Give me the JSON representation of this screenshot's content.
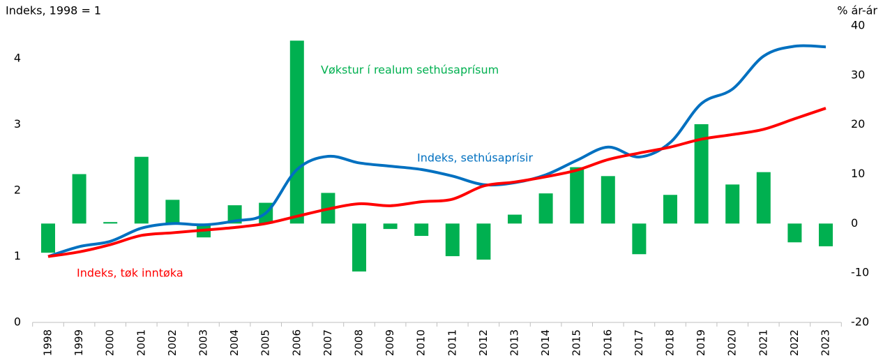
{
  "chart_data": {
    "type": "bar_line",
    "y_label": "Indeks, 1998 = 1",
    "y2_label": "% ár-ár",
    "categories": [
      "1998",
      "1999",
      "2000",
      "2001",
      "2002",
      "2003",
      "2004",
      "2005",
      "2006",
      "2007",
      "2008",
      "2009",
      "2010",
      "2011",
      "2012",
      "2013",
      "2014",
      "2015",
      "2016",
      "2017",
      "2018",
      "2019",
      "2020",
      "2021",
      "2022",
      "2023"
    ],
    "ylim": [
      0,
      4.5
    ],
    "yticks": [
      0,
      1,
      2,
      3,
      4
    ],
    "y2lim": [
      -20,
      40
    ],
    "y2ticks": [
      -20,
      -10,
      0,
      10,
      20,
      30,
      40
    ],
    "series": [
      {
        "name": "Vøkstur í realum sethúsaprísum",
        "type": "bar",
        "axis": "y2",
        "color": "#00b050",
        "values": [
          -5.9,
          10,
          0.3,
          13.5,
          4.8,
          -2.8,
          3.7,
          4.2,
          37,
          6.2,
          -9.7,
          -1.1,
          -2.5,
          -6.6,
          -7.3,
          1.8,
          6.1,
          11.4,
          9.6,
          -6.2,
          5.8,
          20.1,
          7.9,
          10.4,
          -3.8,
          -4.6
        ]
      },
      {
        "name": "Indeks, sethúsaprísir",
        "type": "line",
        "axis": "y",
        "color": "#0070c0",
        "values": [
          1.0,
          1.15,
          1.23,
          1.43,
          1.5,
          1.48,
          1.54,
          1.66,
          2.32,
          2.52,
          2.42,
          2.37,
          2.32,
          2.22,
          2.09,
          2.12,
          2.24,
          2.46,
          2.66,
          2.51,
          2.73,
          3.32,
          3.54,
          4.04,
          4.19,
          4.18
        ]
      },
      {
        "name": "Indeks, tøk inntøka",
        "type": "line",
        "axis": "y",
        "color": "#ff0000",
        "values": [
          1.0,
          1.07,
          1.18,
          1.32,
          1.36,
          1.4,
          1.44,
          1.5,
          1.61,
          1.72,
          1.8,
          1.77,
          1.83,
          1.87,
          2.07,
          2.13,
          2.21,
          2.31,
          2.47,
          2.57,
          2.66,
          2.78,
          2.85,
          2.93,
          3.09,
          3.25
        ]
      }
    ]
  }
}
